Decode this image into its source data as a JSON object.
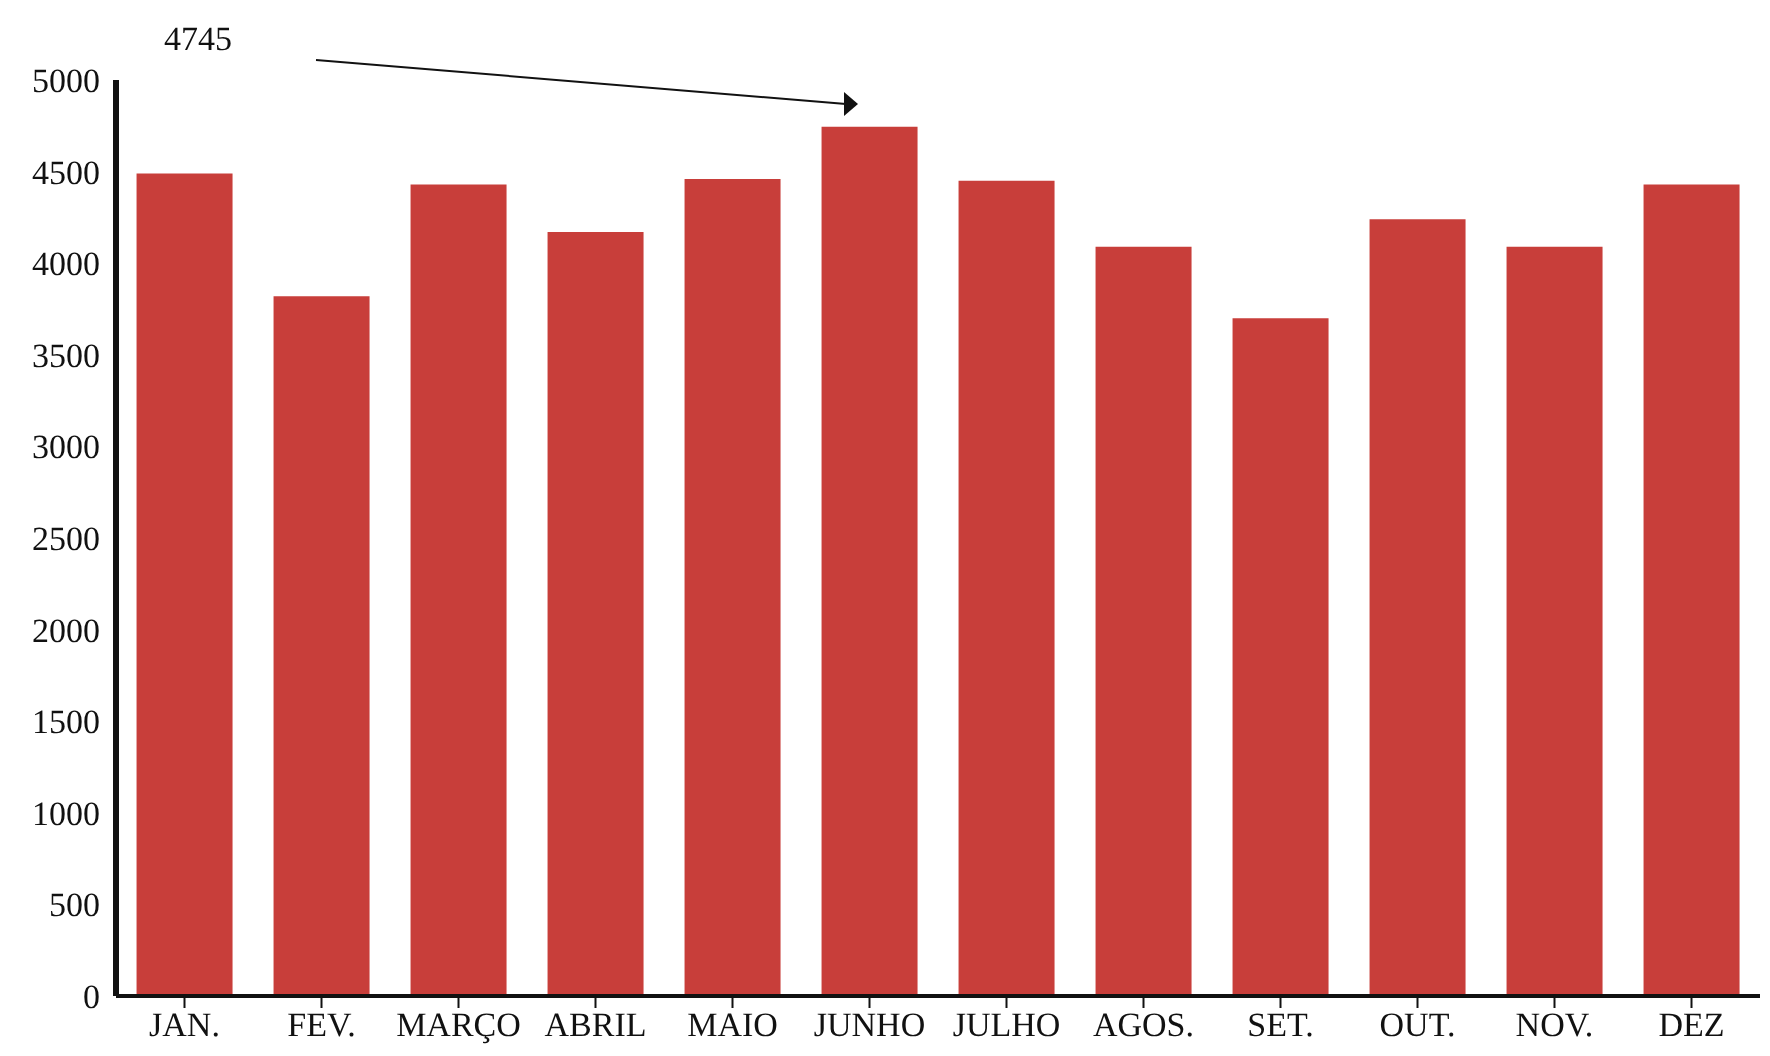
{
  "chart_data": {
    "type": "bar",
    "categories": [
      "JAN.",
      "FEV.",
      "MARÇO",
      "ABRIL",
      "MAIO",
      "JUNHO",
      "JULHO",
      "AGOS.",
      "SET.",
      "OUT.",
      "NOV.",
      "DEZ"
    ],
    "values": [
      4490,
      3820,
      4430,
      4170,
      4460,
      4745,
      4450,
      4090,
      3700,
      4240,
      4090,
      4430
    ],
    "color": "#c83e3a",
    "ylim": [
      0,
      5000
    ],
    "yticks": [
      0,
      500,
      1000,
      1500,
      2000,
      2500,
      3000,
      3500,
      4000,
      4500,
      5000
    ],
    "grid": false,
    "annotations": [
      "4745"
    ]
  }
}
